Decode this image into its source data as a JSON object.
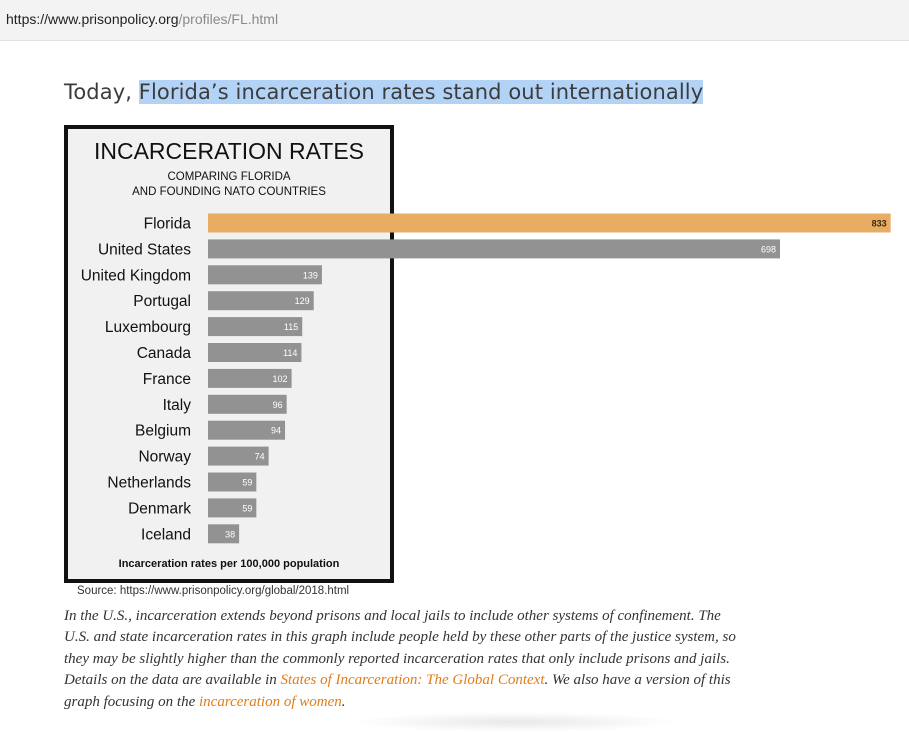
{
  "browser": {
    "url_host": "https://www.prisonpolicy.org",
    "url_path": "/profiles/FL.html"
  },
  "heading": {
    "prefix": "Today, ",
    "highlighted": "Florida’s incarceration rates stand out internationally"
  },
  "chart_data": {
    "type": "bar",
    "orientation": "horizontal",
    "title": "INCARCERATION RATES",
    "subtitle_line1": "COMPARING FLORIDA",
    "subtitle_line2": "AND FOUNDING NATO COUNTRIES",
    "categories": [
      "Florida",
      "United States",
      "United Kingdom",
      "Portugal",
      "Luxembourg",
      "Canada",
      "France",
      "Italy",
      "Belgium",
      "Norway",
      "Netherlands",
      "Denmark",
      "Iceland"
    ],
    "values": [
      833,
      698,
      139,
      129,
      115,
      114,
      102,
      96,
      94,
      74,
      59,
      59,
      38
    ],
    "highlight_category": "Florida",
    "colors": {
      "highlight": "#e8ad62",
      "default": "#929292",
      "frame": "#111111",
      "background": "#f1f1f1"
    },
    "footnote": "Incarceration rates per 100,000 population"
  },
  "source": "Source: https://www.prisonpolicy.org/global/2018.html",
  "caption": {
    "text1": "In the U.S., incarceration extends beyond prisons and local jails to include other systems of confinement. The U.S. and state incarceration rates in this graph include people held by these other parts of the justice system, so they may be slightly higher than the commonly reported incarceration rates that only include prisons and jails. Details on the data are available in ",
    "link1": "States of Incarceration: The Global Context",
    "text2": ". We also have a version of this graph focusing on the ",
    "link2": "incarceration of women",
    "text3": "."
  }
}
